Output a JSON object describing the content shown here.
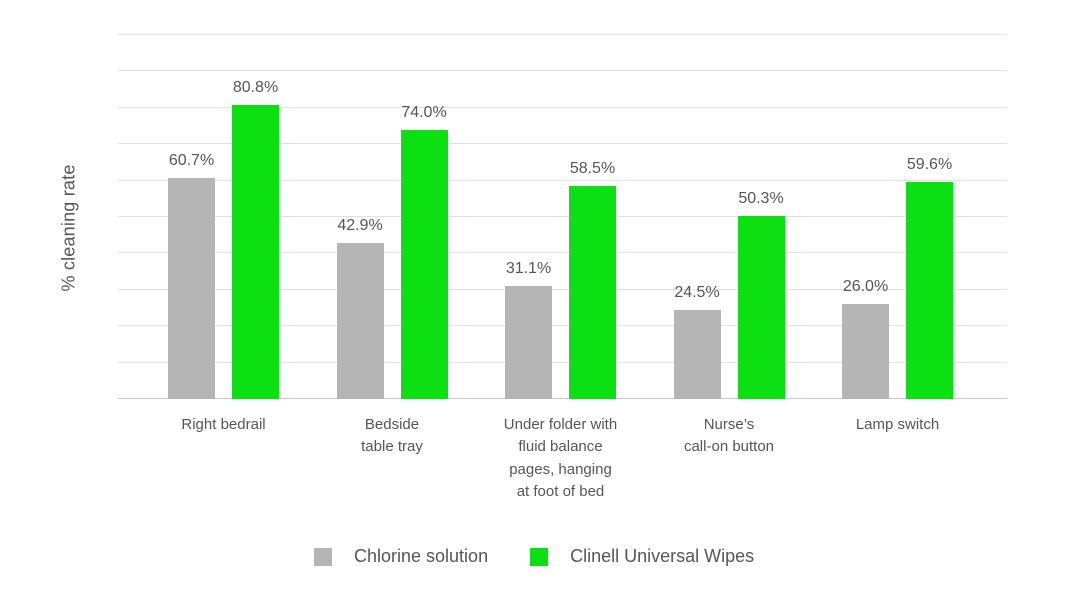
{
  "chart_data": {
    "type": "bar",
    "title": "",
    "ylabel": "% cleaning rate",
    "xlabel": "",
    "ylim": [
      0,
      100
    ],
    "gridline_step": 10,
    "grid": true,
    "legend_position": "bottom",
    "categories": [
      "Right bedrail",
      "Bedside\ntable tray",
      "Under folder with\nfluid balance\npages, hanging\nat foot of bed",
      "Nurse’s\ncall-on button",
      "Lamp switch"
    ],
    "series": [
      {
        "name": "Chlorine solution",
        "color": "#b5b5b5",
        "values": [
          60.7,
          42.9,
          31.1,
          24.5,
          26.0
        ],
        "value_labels": [
          "60.7%",
          "42.9%",
          "31.1%",
          "24.5%",
          "26.0%"
        ]
      },
      {
        "name": "Clinell Universal Wipes",
        "color": "#0cdf12",
        "values": [
          80.8,
          74.0,
          58.5,
          50.3,
          59.6
        ],
        "value_labels": [
          "80.8%",
          "74.0%",
          "58.5%",
          "50.3%",
          "59.6%"
        ]
      }
    ],
    "style": {
      "grid_color": "#e2e2e2",
      "axis_color": "#c9c9c9",
      "text_color": "#55565a",
      "background": "#ffffff"
    }
  }
}
